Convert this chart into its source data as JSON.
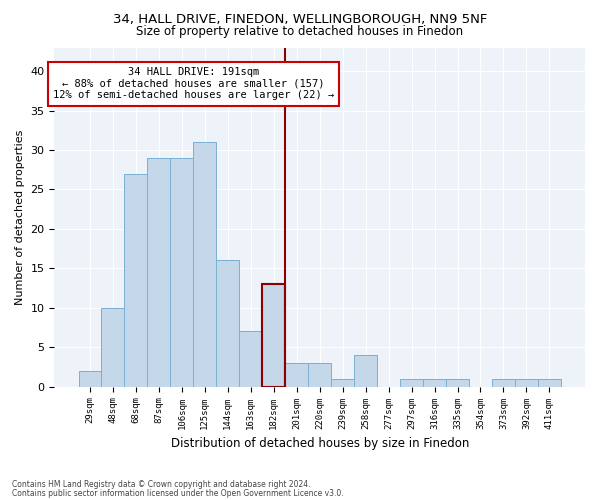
{
  "title1": "34, HALL DRIVE, FINEDON, WELLINGBOROUGH, NN9 5NF",
  "title2": "Size of property relative to detached houses in Finedon",
  "xlabel": "Distribution of detached houses by size in Finedon",
  "ylabel": "Number of detached properties",
  "categories": [
    "29sqm",
    "48sqm",
    "68sqm",
    "87sqm",
    "106sqm",
    "125sqm",
    "144sqm",
    "163sqm",
    "182sqm",
    "201sqm",
    "220sqm",
    "239sqm",
    "258sqm",
    "277sqm",
    "297sqm",
    "316sqm",
    "335sqm",
    "354sqm",
    "373sqm",
    "392sqm",
    "411sqm"
  ],
  "values": [
    2,
    10,
    27,
    29,
    29,
    31,
    16,
    7,
    13,
    3,
    3,
    1,
    4,
    0,
    1,
    1,
    1,
    0,
    1,
    1,
    1
  ],
  "bar_color": "#c5d8ea",
  "bar_edge_color": "#7bafd4",
  "highlight_index": 8,
  "highlight_bar_edge_color": "#8b0000",
  "vline_color": "#8b0000",
  "annotation_text": "34 HALL DRIVE: 191sqm\n← 88% of detached houses are smaller (157)\n12% of semi-detached houses are larger (22) →",
  "annotation_box_color": "#ffffff",
  "annotation_box_edge_color": "#cc0000",
  "ylim": [
    0,
    43
  ],
  "yticks": [
    0,
    5,
    10,
    15,
    20,
    25,
    30,
    35,
    40
  ],
  "bg_color": "#eef2f9",
  "footer1": "Contains HM Land Registry data © Crown copyright and database right 2024.",
  "footer2": "Contains public sector information licensed under the Open Government Licence v3.0."
}
